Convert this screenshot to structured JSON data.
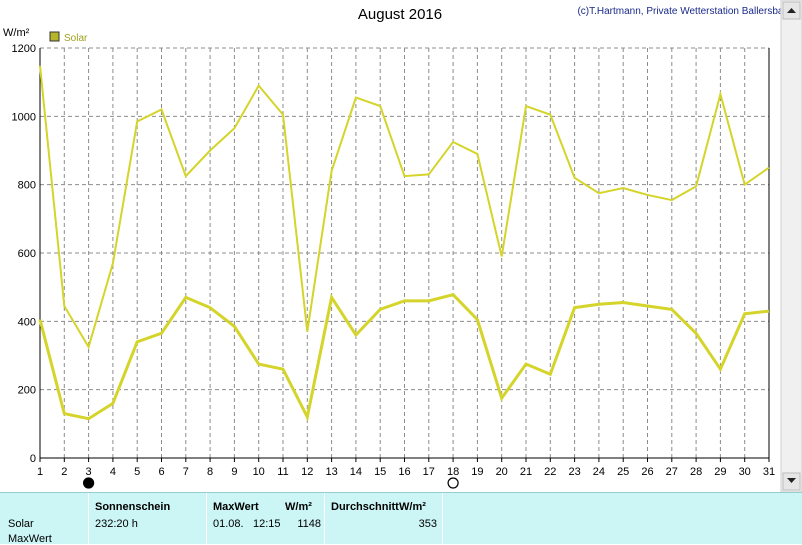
{
  "title": "August 2016",
  "copyright": "(c)T.Hartmann, Private Wetterstation Ballersbach",
  "colors": {
    "series": "#d4d42a",
    "grid": "#8c8c8c",
    "legend_box": "#b5b52a",
    "footer_bg": "#ccf5f5"
  },
  "chart_data": {
    "type": "line",
    "ylabel": "W/m²",
    "ylim": [
      0,
      1200
    ],
    "yticks": [
      0,
      200,
      400,
      600,
      800,
      1000,
      1200
    ],
    "x": [
      1,
      2,
      3,
      4,
      5,
      6,
      7,
      8,
      9,
      10,
      11,
      12,
      13,
      14,
      15,
      16,
      17,
      18,
      19,
      20,
      21,
      22,
      23,
      24,
      25,
      26,
      27,
      28,
      29,
      30,
      31
    ],
    "xlim": [
      1,
      31
    ],
    "legend": {
      "position": "top-left",
      "entries": [
        "Solar"
      ]
    },
    "grid": true,
    "series": [
      {
        "name": "Solar",
        "kind": "max",
        "values": [
          1148,
          445,
          325,
          570,
          985,
          1020,
          825,
          900,
          965,
          1090,
          1005,
          370,
          840,
          1055,
          1030,
          825,
          830,
          925,
          890,
          590,
          1030,
          1005,
          820,
          775,
          790,
          770,
          755,
          795,
          1065,
          800,
          850
        ]
      },
      {
        "name": "Solar",
        "kind": "average",
        "values": [
          405,
          130,
          115,
          160,
          340,
          365,
          470,
          440,
          385,
          275,
          260,
          120,
          470,
          360,
          435,
          460,
          460,
          478,
          405,
          175,
          275,
          245,
          440,
          450,
          455,
          445,
          435,
          365,
          260,
          422,
          430
        ]
      }
    ],
    "markers": [
      {
        "day": 3,
        "symbol": "new-moon"
      },
      {
        "day": 18,
        "symbol": "full-moon"
      }
    ]
  },
  "footer": {
    "row_labels": [
      "Solar",
      "MaxWert"
    ],
    "sonnenschein": {
      "header": "Sonnenschein",
      "value": "232:20 h"
    },
    "maxwert": {
      "header": "MaxWert",
      "unit": "W/m²",
      "date": "01.08.",
      "time": "12:15",
      "value": "1148"
    },
    "durchschnitt": {
      "header": "Durchschnitt",
      "unit": "W/m²",
      "value": "353"
    }
  }
}
